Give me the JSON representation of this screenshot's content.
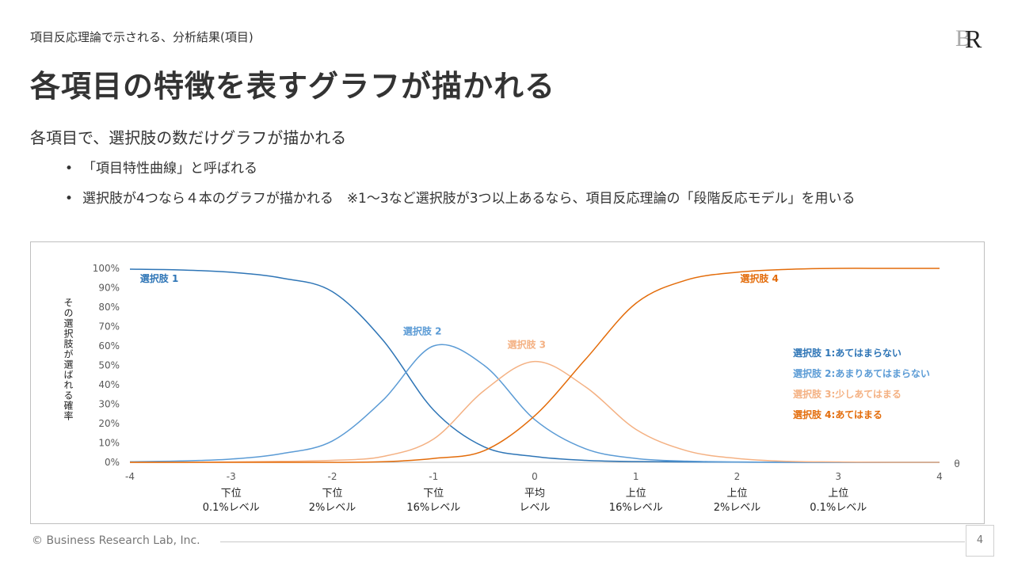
{
  "slide": {
    "subtitle": "項目反応理論で示される、分析結果(項目)",
    "title": "各項目の特徴を表すグラフが描かれる",
    "lead": "各項目で、選択肢の数だけグラフが描かれる",
    "bullets": [
      "「項目特性曲線」と呼ばれる",
      "選択肢が4つなら４本のグラフが描かれる　※1～3など選択肢が3つ以上あるなら、項目反応理論の「段階反応モデル」を用いる"
    ],
    "bullet_symbol": "•",
    "logo_letters": "BR",
    "footer": "© Business Research Lab, Inc.",
    "page_number": "4"
  },
  "chart_data": {
    "type": "line",
    "ylabel": "その選択肢が選ばれる確率",
    "xlabel": "θ",
    "xlim": [
      -4,
      4
    ],
    "ylim": [
      0,
      100
    ],
    "y_ticks": [
      "0%",
      "10%",
      "20%",
      "30%",
      "40%",
      "50%",
      "60%",
      "70%",
      "80%",
      "90%",
      "100%"
    ],
    "x_ticks": [
      "-4",
      "-3",
      "-2",
      "-1",
      "0",
      "1",
      "2",
      "3",
      "4"
    ],
    "x_tick_values": [
      -4,
      -3,
      -2,
      -1,
      0,
      1,
      2,
      3,
      4
    ],
    "level_labels": [
      {
        "x": -3,
        "line1": "下位",
        "line2": "0.1%レベル"
      },
      {
        "x": -2,
        "line1": "下位",
        "line2": "2%レベル"
      },
      {
        "x": -1,
        "line1": "下位",
        "line2": "16%レベル"
      },
      {
        "x": 0,
        "line1": "平均",
        "line2": "レベル"
      },
      {
        "x": 1,
        "line1": "上位",
        "line2": "16%レベル"
      },
      {
        "x": 2,
        "line1": "上位",
        "line2": "2%レベル"
      },
      {
        "x": 3,
        "line1": "上位",
        "line2": "0.1%レベル"
      }
    ],
    "series": [
      {
        "name": "選択肢 1",
        "legend": "選択肢 1:あてはまらない",
        "color": "#2e75b6",
        "label_pos": {
          "x": -3.9,
          "y": 93
        },
        "x": [
          -4,
          -3.5,
          -3,
          -2.5,
          -2,
          -1.5,
          -1,
          -0.5,
          0,
          0.5,
          1,
          1.5,
          2,
          2.5,
          3,
          3.5,
          4
        ],
        "values": [
          99.6,
          99.2,
          98,
          95,
          88,
          63,
          27,
          8,
          3,
          1,
          0.4,
          0.2,
          0.1,
          0,
          0,
          0,
          0
        ]
      },
      {
        "name": "選択肢 2",
        "legend": "選択肢 2:あまりあてはまらない",
        "color": "#5b9bd5",
        "label_pos": {
          "x": -1.3,
          "y": 66
        },
        "x": [
          -4,
          -3.5,
          -3,
          -2.5,
          -2,
          -1.5,
          -1,
          -0.5,
          0,
          0.5,
          1,
          1.5,
          2,
          2.5,
          3,
          3.5,
          4
        ],
        "values": [
          0.3,
          0.7,
          1.7,
          4.5,
          11,
          32,
          60,
          50,
          22,
          7,
          2,
          0.6,
          0.2,
          0,
          0,
          0,
          0
        ]
      },
      {
        "name": "選択肢 3",
        "legend": "選択肢 3:少しあてはまる",
        "color": "#f4b183",
        "label_pos": {
          "x": -0.27,
          "y": 59
        },
        "x": [
          -4,
          -3.5,
          -3,
          -2.5,
          -2,
          -1.5,
          -1,
          -0.5,
          0,
          0.5,
          1,
          1.5,
          2,
          2.5,
          3,
          3.5,
          4
        ],
        "values": [
          0,
          0,
          0.2,
          0.5,
          1,
          3,
          12,
          37,
          52,
          39,
          17,
          6,
          2,
          0.5,
          0.2,
          0,
          0
        ]
      },
      {
        "name": "選択肢 4",
        "legend": "選択肢 4:あてはまる",
        "color": "#e36c0a",
        "label_pos": {
          "x": 2.03,
          "y": 93
        },
        "x": [
          -4,
          -3.5,
          -3,
          -2.5,
          -2,
          -1.5,
          -1,
          -0.5,
          0,
          0.5,
          1,
          1.5,
          2,
          2.5,
          3,
          3.5,
          4
        ],
        "values": [
          0,
          0,
          0,
          0,
          0,
          0.3,
          2,
          6,
          24,
          53,
          82,
          94,
          98,
          99.5,
          100,
          100,
          100
        ]
      }
    ],
    "legend_position": "right",
    "grid": false
  }
}
